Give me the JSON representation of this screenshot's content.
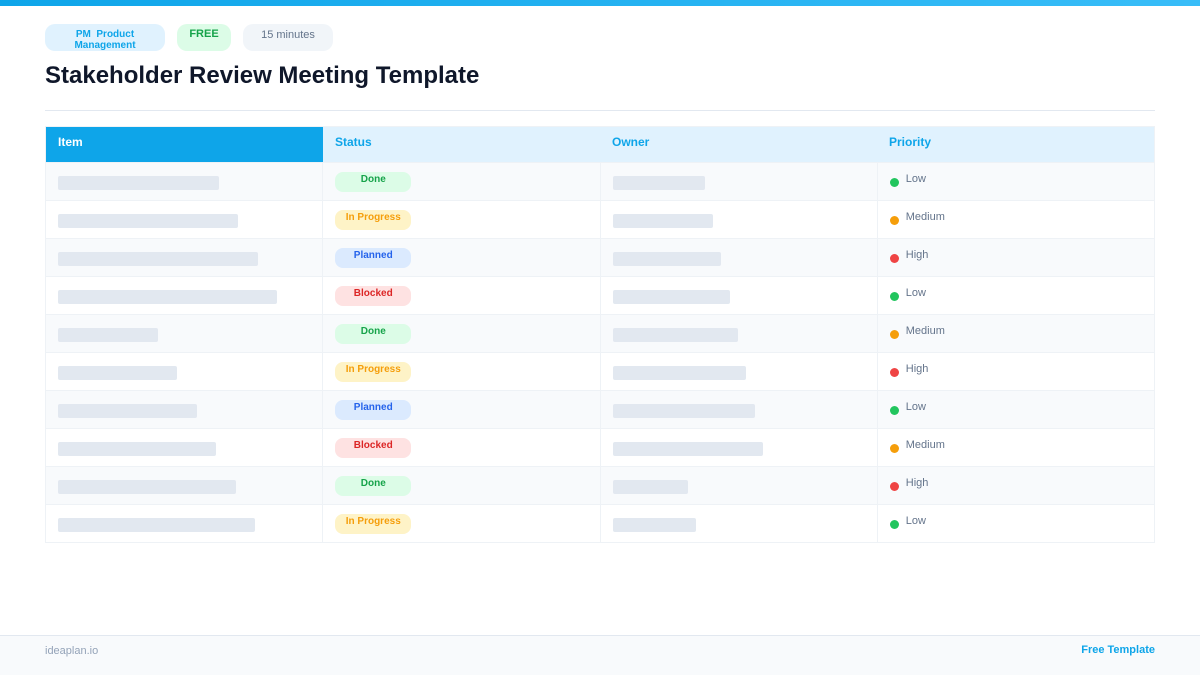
{
  "header": {
    "tags": {
      "category_code": "PM",
      "category": "Product Management",
      "price": "FREE",
      "duration": "15 minutes"
    },
    "title": "Stakeholder Review Meeting Template"
  },
  "table": {
    "columns": [
      "Item",
      "Status",
      "Owner",
      "Priority"
    ],
    "rows": [
      {
        "status": "Done",
        "priority": "Low"
      },
      {
        "status": "In Progress",
        "priority": "Medium"
      },
      {
        "status": "Planned",
        "priority": "High"
      },
      {
        "status": "Blocked",
        "priority": "Low"
      },
      {
        "status": "Done",
        "priority": "Medium"
      },
      {
        "status": "In Progress",
        "priority": "High"
      },
      {
        "status": "Planned",
        "priority": "Low"
      },
      {
        "status": "Blocked",
        "priority": "Medium"
      },
      {
        "status": "Done",
        "priority": "High"
      },
      {
        "status": "In Progress",
        "priority": "Low"
      }
    ]
  },
  "footer": {
    "site": "ideaplan.io",
    "label": "Free Template"
  }
}
